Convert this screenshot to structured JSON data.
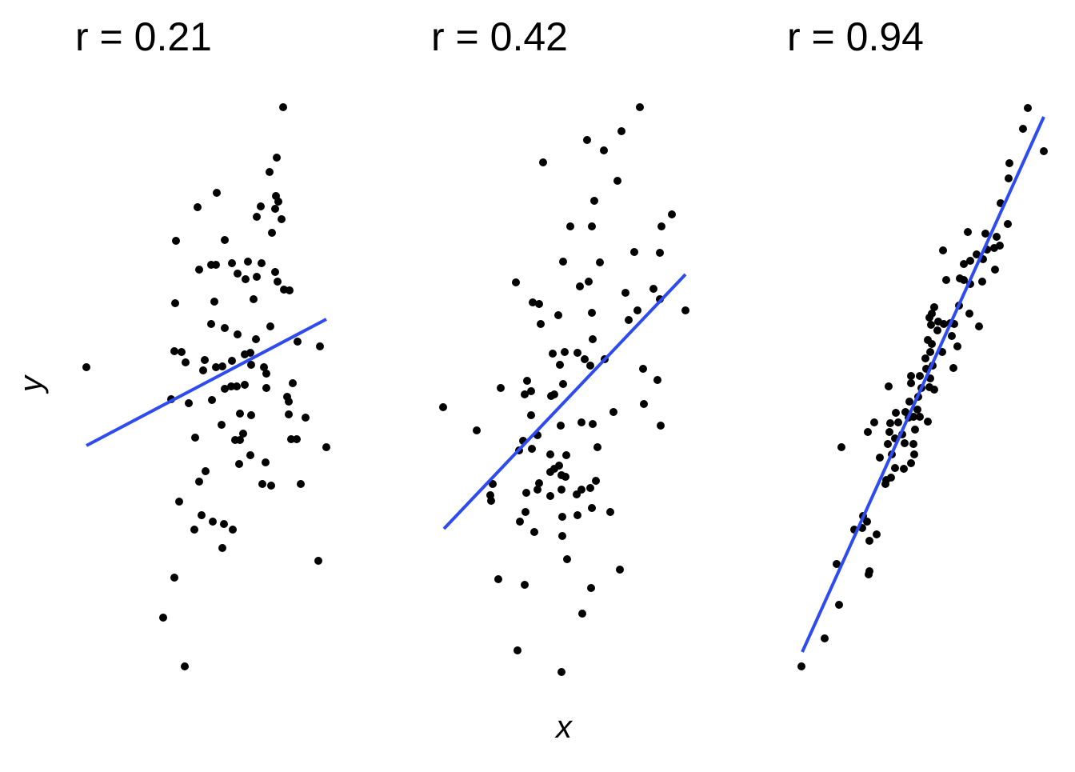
{
  "chart_data": [
    {
      "type": "scatter",
      "title": "r = 0.21",
      "ylabel": "y",
      "color": "#000000",
      "xlim": [
        0,
        320
      ],
      "ylim": [
        0,
        730
      ],
      "x": [
        8,
        254,
        246,
        237,
        171,
        245,
        248,
        226,
        244,
        221,
        252,
        147,
        240,
        120,
        181,
        164,
        170,
        149,
        190,
        210,
        227,
        197,
        207,
        221,
        244,
        247,
        255,
        262,
        119,
        168,
        217,
        164,
        181,
        197,
        220,
        238,
        272,
        300,
        118,
        127,
        132,
        156,
        170,
        178,
        190,
        206,
        213,
        214,
        230,
        233,
        154,
        114,
        136,
        165,
        181,
        189,
        196,
        206,
        233,
        259,
        261,
        266,
        261,
        282,
        214,
        200,
        177,
        144,
        194,
        200,
        204,
        213,
        232,
        199,
        264,
        271,
        308,
        157,
        149,
        228,
        239,
        276,
        124,
        152,
        166,
        180,
        191,
        143,
        178,
        298,
        118,
        104,
        131
      ],
      "y": [
        391,
        716,
        653,
        635,
        609,
        605,
        598,
        592,
        589,
        579,
        576,
        591,
        559,
        549,
        550,
        519,
        519,
        513,
        521,
        523,
        521,
        508,
        501,
        504,
        510,
        498,
        488,
        487,
        471,
        473,
        476,
        445,
        440,
        432,
        426,
        442,
        423,
        417,
        411,
        410,
        397,
        400,
        391,
        392,
        399,
        407,
        409,
        394,
        391,
        383,
        387,
        351,
        346,
        350,
        364,
        367,
        367,
        369,
        365,
        354,
        348,
        371,
        332,
        328,
        331,
        333,
        319,
        303,
        300,
        300,
        308,
        281,
        272,
        270,
        301,
        301,
        291,
        261,
        248,
        245,
        243,
        245,
        223,
        206,
        198,
        195,
        188,
        188,
        165,
        149,
        128,
        78,
        17
      ],
      "fit": {
        "color": "#2e4bf2",
        "x": [
          8,
          308
        ],
        "y": [
          293,
          451
        ]
      }
    },
    {
      "type": "scatter",
      "title": "r = 0.42",
      "xlabel": "x",
      "color": "#000000",
      "xlim": [
        0,
        320
      ],
      "ylim": [
        0,
        730
      ],
      "x": [
        9,
        255,
        232,
        189,
        210,
        134,
        227,
        198,
        295,
        168,
        195,
        282,
        248,
        280,
        159,
        205,
        100,
        191,
        180,
        237,
        272,
        121,
        129,
        280,
        312,
        153,
        195,
        131,
        252,
        241,
        196,
        146,
        161,
        177,
        186,
        193,
        211,
        155,
        159,
        114,
        111,
        119,
        148,
        144,
        81,
        259,
        277,
        260,
        222,
        119,
        156,
        182,
        196,
        51,
        281,
        109,
        104,
        120,
        127,
        202,
        143,
        148,
        163,
        154,
        143,
        157,
        162,
        71,
        68,
        69,
        129,
        127,
        113,
        157,
        182,
        176,
        200,
        193,
        143,
        195,
        218,
        112,
        105,
        158,
        177,
        123,
        158,
        164,
        230,
        78,
        111,
        194,
        183,
        102,
        157
      ],
      "y": [
        341,
        716,
        686,
        675,
        662,
        647,
        624,
        599,
        582,
        567,
        567,
        567,
        535,
        534,
        523,
        522,
        497,
        498,
        492,
        484,
        489,
        472,
        470,
        476,
        462,
        456,
        459,
        445,
        462,
        450,
        426,
        408,
        410,
        409,
        401,
        393,
        401,
        394,
        370,
        374,
        357,
        361,
        357,
        355,
        365,
        389,
        375,
        345,
        335,
        331,
        318,
        322,
        320,
        312,
        318,
        299,
        287,
        289,
        306,
        291,
        282,
        264,
        281,
        268,
        260,
        256,
        254,
        245,
        231,
        224,
        246,
        238,
        234,
        238,
        238,
        232,
        249,
        240,
        230,
        215,
        210,
        210,
        198,
        204,
        206,
        185,
        180,
        151,
        138,
        126,
        119,
        115,
        83,
        37,
        10
      ],
      "fit": {
        "color": "#2e4bf2",
        "x": [
          10,
          312
        ],
        "y": [
          189,
          507
        ]
      }
    },
    {
      "type": "scatter",
      "title": "r = 0.94",
      "color": "#000000",
      "xlim": [
        0,
        320
      ],
      "ylim": [
        0,
        730
      ],
      "x": [
        12,
        41,
        59,
        56,
        97,
        96,
        78,
        88,
        97,
        106,
        89,
        94,
        62,
        121,
        95,
        103,
        123,
        122,
        110,
        120,
        129,
        125,
        129,
        140,
        149,
        153,
        152,
        141,
        138,
        133,
        130,
        142,
        146,
        152,
        154,
        160,
        170,
        157,
        147,
        158,
        162,
        172,
        178,
        173,
        149,
        149,
        160,
        168,
        167,
        173,
        176,
        175,
        170,
        182,
        174,
        175,
        178,
        172,
        183,
        190,
        198,
        203,
        200,
        188,
        207,
        202,
        118,
        117,
        124,
        234,
        222,
        209,
        215,
        193,
        210,
        223,
        238,
        215,
        223,
        231,
        239,
        244,
        253,
        189,
        254,
        260,
        256,
        220,
        242,
        270,
        261,
        271,
        272,
        295,
        289,
        315
      ],
      "y": [
        17,
        52,
        94,
        145,
        136,
        132,
        188,
        190,
        174,
        182,
        205,
        198,
        291,
        367,
        310,
        322,
        321,
        310,
        278,
        295,
        302,
        282,
        265,
        264,
        271,
        282,
        295,
        296,
        307,
        322,
        334,
        335,
        328,
        329,
        313,
        329,
        323,
        338,
        348,
        354,
        365,
        366,
        363,
        377,
        380,
        371,
        380,
        389,
        402,
        410,
        393,
        420,
        425,
        437,
        444,
        458,
        466,
        453,
        448,
        445,
        446,
        445,
        430,
        410,
        417,
        390,
        250,
        245,
        253,
        442,
        458,
        468,
        500,
        500,
        502,
        495,
        498,
        520,
        524,
        532,
        526,
        538,
        540,
        537,
        513,
        543,
        554,
        560,
        558,
        570,
        596,
        627,
        646,
        715,
        689,
        661
      ],
      "fit": {
        "color": "#2e4bf2",
        "x": [
          13,
          315
        ],
        "y": [
          35,
          704
        ]
      }
    }
  ]
}
